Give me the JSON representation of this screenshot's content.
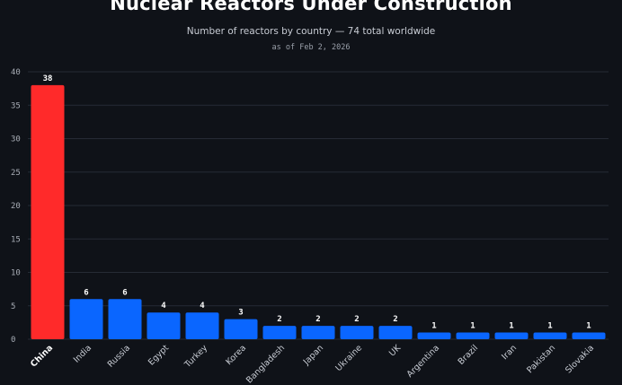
{
  "chart_data": {
    "type": "bar",
    "title": "Nuclear Reactors Under Construction",
    "subtitle": "Number of reactors by country — 74 total worldwide",
    "note": "as of Feb 2, 2026",
    "categories": [
      "China",
      "India",
      "Russia",
      "Egypt",
      "Turkey",
      "Korea",
      "Bangladesh",
      "Japan",
      "Ukraine",
      "UK",
      "Argentina",
      "Brazil",
      "Iran",
      "Pakistan",
      "Slovakia"
    ],
    "values": [
      38,
      6,
      6,
      4,
      4,
      3,
      2,
      2,
      2,
      2,
      1,
      1,
      1,
      1,
      1
    ],
    "highlight": "China",
    "ylim": [
      0,
      40
    ],
    "yticks": [
      0,
      5,
      10,
      15,
      20,
      25,
      30,
      35,
      40
    ],
    "xlabel": "",
    "ylabel": "",
    "grid": true,
    "colors": {
      "highlight": "#ff2a2a",
      "bar": "#0a66ff",
      "background": "#0f1218",
      "grid": "#262b35"
    }
  }
}
